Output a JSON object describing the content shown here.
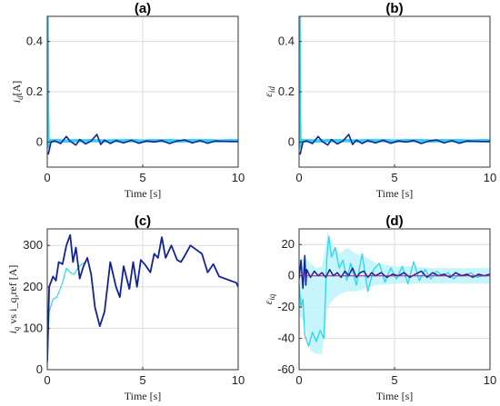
{
  "chart_data": [
    {
      "type": "line",
      "panel": "(a)",
      "title": "(a)",
      "xlabel": "Time [s]",
      "ylabel": "i_d [A]",
      "ylabel_main": "i",
      "ylabel_sub": "d",
      "ylabel_rest": "[A]",
      "xlim": [
        0,
        10
      ],
      "ylim": [
        -0.1,
        0.5
      ],
      "xticks": [
        0,
        5,
        10
      ],
      "yticks": [
        0,
        0.2,
        0.4
      ],
      "ytick_labels": [
        "0",
        "0.2",
        "0.4"
      ],
      "grid": true,
      "series": [
        {
          "color": "#2fd3f0",
          "width": 3.5,
          "x": [
            0,
            0.02,
            0.05,
            0.1,
            0.5,
            1,
            1.5,
            2,
            2.5,
            3,
            3.5,
            4,
            4.5,
            5,
            5.5,
            6,
            6.5,
            7,
            7.5,
            8,
            8.5,
            9,
            9.5,
            10
          ],
          "y": [
            0.5,
            0.15,
            -0.02,
            0.005,
            0.006,
            0.004,
            0.006,
            0.005,
            0.006,
            0.004,
            0.006,
            0.005,
            0.006,
            0.004,
            0.006,
            0.005,
            0.006,
            0.004,
            0.006,
            0.005,
            0.006,
            0.004,
            0.006,
            0.005
          ]
        },
        {
          "color": "#12229a",
          "width": 1.6,
          "x": [
            0.05,
            0.2,
            0.4,
            0.7,
            1.0,
            1.2,
            1.5,
            1.7,
            2.0,
            2.3,
            2.6,
            2.8,
            3.0,
            3.3,
            3.6,
            4.0,
            4.4,
            4.8,
            5.2,
            5.6,
            6.0,
            6.4,
            6.8,
            7.2,
            7.6,
            8.0,
            8.4,
            8.8,
            9.2,
            9.6,
            10
          ],
          "y": [
            -0.05,
            0.0,
            0.004,
            -0.006,
            0.022,
            0.003,
            -0.012,
            0.01,
            -0.008,
            0.004,
            0.03,
            -0.01,
            0.008,
            -0.006,
            0.006,
            -0.004,
            0.007,
            -0.005,
            0.004,
            0.0,
            0.006,
            -0.006,
            0.004,
            0.008,
            -0.004,
            0.006,
            -0.005,
            0.004,
            0.003,
            0.002,
            0.002
          ]
        }
      ]
    },
    {
      "type": "line",
      "panel": "(b)",
      "title": "(b)",
      "xlabel": "Time [s]",
      "ylabel": "ε_id",
      "ylabel_main": "ε",
      "ylabel_sub": "id",
      "ylabel_rest": "",
      "xlim": [
        0,
        10
      ],
      "ylim": [
        -0.1,
        0.5
      ],
      "xticks": [
        0,
        5,
        10
      ],
      "yticks": [
        0,
        0.2,
        0.4
      ],
      "ytick_labels": [
        "0",
        "0.2",
        "0.4"
      ],
      "grid": true,
      "series": [
        {
          "color": "#2fd3f0",
          "width": 3.5,
          "x": [
            0,
            0.02,
            0.05,
            0.1,
            0.5,
            1,
            1.5,
            2,
            2.5,
            3,
            3.5,
            4,
            4.5,
            5,
            5.5,
            6,
            6.5,
            7,
            7.5,
            8,
            8.5,
            9,
            9.5,
            10
          ],
          "y": [
            0.5,
            0.15,
            -0.02,
            0.005,
            0.006,
            0.004,
            0.006,
            0.005,
            0.006,
            0.004,
            0.006,
            0.005,
            0.006,
            0.004,
            0.006,
            0.005,
            0.006,
            0.004,
            0.006,
            0.005,
            0.006,
            0.004,
            0.006,
            0.005
          ]
        },
        {
          "color": "#12229a",
          "width": 1.6,
          "x": [
            0.05,
            0.2,
            0.4,
            0.7,
            1.0,
            1.2,
            1.5,
            1.7,
            2.0,
            2.3,
            2.6,
            2.8,
            3.0,
            3.3,
            3.6,
            4.0,
            4.4,
            4.8,
            5.2,
            5.6,
            6.0,
            6.4,
            6.8,
            7.2,
            7.6,
            8.0,
            8.4,
            8.8,
            9.2,
            9.6,
            10
          ],
          "y": [
            -0.05,
            0.0,
            0.004,
            -0.006,
            0.022,
            0.003,
            -0.012,
            0.01,
            -0.008,
            0.004,
            0.03,
            -0.01,
            0.008,
            -0.006,
            0.006,
            -0.004,
            0.007,
            -0.005,
            0.004,
            0.0,
            0.006,
            -0.006,
            0.004,
            0.008,
            -0.004,
            0.006,
            -0.005,
            0.004,
            0.003,
            0.002,
            0.002
          ]
        }
      ]
    },
    {
      "type": "line",
      "panel": "(c)",
      "title": "(c)",
      "xlabel": "Time [s]",
      "ylabel": "i_q vs i_q,ref [A]",
      "ylabel_main": "i",
      "ylabel_sub": "q",
      "ylabel_rest": " vs i_q,ref [A]",
      "xlim": [
        0,
        10
      ],
      "ylim": [
        0,
        340
      ],
      "xticks": [
        0,
        5,
        10
      ],
      "yticks": [
        0,
        100,
        200,
        300
      ],
      "ytick_labels": [
        "0",
        "100",
        "200",
        "300"
      ],
      "grid": true,
      "series": [
        {
          "color": "#2fd3f0",
          "width": 1.2,
          "x": [
            0,
            0.1,
            0.3,
            0.5,
            0.8,
            1.0,
            1.2,
            1.4,
            1.6,
            1.8,
            2.0
          ],
          "y": [
            10,
            140,
            170,
            175,
            210,
            245,
            235,
            230,
            245,
            255,
            260
          ]
        },
        {
          "color": "#12229a",
          "width": 1.8,
          "x": [
            0,
            0.1,
            0.3,
            0.45,
            0.6,
            0.8,
            1.0,
            1.2,
            1.35,
            1.5,
            1.7,
            1.9,
            2.1,
            2.3,
            2.5,
            2.75,
            3.0,
            3.3,
            3.6,
            3.8,
            4.0,
            4.3,
            4.5,
            4.7,
            4.9,
            5.1,
            5.4,
            5.6,
            5.8,
            6.0,
            6.2,
            6.5,
            6.8,
            7.0,
            7.2,
            7.5,
            7.8,
            8.1,
            8.4,
            8.7,
            9.0,
            9.3,
            9.6,
            9.9,
            10
          ],
          "y": [
            20,
            200,
            225,
            215,
            260,
            255,
            300,
            325,
            260,
            295,
            220,
            250,
            270,
            230,
            150,
            105,
            140,
            260,
            200,
            175,
            250,
            195,
            260,
            200,
            265,
            255,
            235,
            280,
            270,
            320,
            270,
            300,
            265,
            260,
            275,
            300,
            290,
            280,
            235,
            255,
            225,
            220,
            215,
            210,
            200
          ]
        }
      ]
    },
    {
      "type": "line",
      "panel": "(d)",
      "title": "(d)",
      "xlabel": "Time [s]",
      "ylabel": "ε_iq",
      "ylabel_main": "ε",
      "ylabel_sub": "iq",
      "ylabel_rest": "",
      "xlim": [
        0,
        10
      ],
      "ylim": [
        -60,
        30
      ],
      "xticks": [
        0,
        5,
        10
      ],
      "yticks": [
        -60,
        -40,
        -20,
        0,
        20
      ],
      "ytick_labels": [
        "-60",
        "-40",
        "-20",
        "0",
        "20"
      ],
      "grid": true,
      "series": [
        {
          "color": "#bdf3fb",
          "width": 1.0,
          "band": true,
          "x": [
            0,
            0.3,
            0.6,
            0.9,
            1.2,
            1.5,
            1.8,
            2.1,
            2.5,
            3.0,
            3.5,
            4.0,
            5.0,
            6.0,
            7.0,
            8.0,
            9.0,
            10
          ],
          "upper": [
            10,
            12,
            8,
            5,
            6,
            28,
            20,
            14,
            18,
            14,
            12,
            8,
            6,
            6,
            5,
            5,
            5,
            5
          ],
          "lower": [
            -25,
            -30,
            -48,
            -50,
            -50,
            -20,
            -15,
            -12,
            -10,
            -10,
            -8,
            -6,
            -5,
            -5,
            -5,
            -5,
            -5,
            -5
          ]
        },
        {
          "color": "#2fd3f0",
          "width": 1.3,
          "x": [
            0,
            0.1,
            0.2,
            0.3,
            0.5,
            0.7,
            0.9,
            1.1,
            1.3,
            1.45,
            1.55,
            1.7,
            1.9,
            2.1,
            2.3,
            2.5,
            2.7,
            3.0,
            3.3,
            3.6,
            3.9,
            4.2,
            4.5,
            4.8,
            5.1,
            5.4,
            5.7,
            6.0,
            6.3,
            6.6,
            6.9,
            7.2,
            7.5,
            7.8,
            8.1,
            8.4,
            8.7,
            9.0,
            9.3,
            9.6,
            10
          ],
          "y": [
            -5,
            -20,
            -15,
            -38,
            -45,
            -36,
            -42,
            -35,
            -40,
            10,
            25,
            12,
            18,
            5,
            10,
            -3,
            8,
            -6,
            14,
            -10,
            4,
            8,
            -4,
            5,
            -2,
            6,
            -5,
            9,
            -3,
            4,
            -2,
            3,
            0,
            2,
            -2,
            1,
            0,
            2,
            -1,
            0,
            1
          ]
        },
        {
          "color": "#12229a",
          "width": 1.5,
          "x": [
            0,
            0.1,
            0.2,
            0.3,
            0.35,
            0.4,
            0.6,
            0.8,
            1.0,
            1.2,
            1.4,
            1.6,
            1.8,
            2.0,
            2.2,
            2.4,
            2.6,
            2.8,
            3.0,
            3.2,
            3.4,
            3.6,
            3.8,
            4.0,
            4.3,
            4.6,
            4.9,
            5.2,
            5.5,
            5.8,
            6.1,
            6.4,
            6.7,
            7.0,
            7.3,
            7.6,
            7.9,
            8.2,
            8.5,
            8.8,
            9.1,
            9.4,
            9.7,
            10
          ],
          "y": [
            -2,
            10,
            -8,
            13,
            -6,
            4,
            -1,
            3,
            0,
            2,
            -1,
            4,
            0,
            2,
            -1,
            3,
            0,
            5,
            -1,
            2,
            3,
            -1,
            2,
            0,
            2,
            -1,
            1,
            0,
            2,
            -1,
            1,
            3,
            -1,
            2,
            0,
            1,
            -1,
            2,
            0,
            1,
            -1,
            1,
            0,
            1
          ]
        },
        {
          "color": "#c0147a",
          "width": 1.0,
          "x": [
            0,
            10
          ],
          "y": [
            0,
            0
          ]
        }
      ]
    }
  ]
}
